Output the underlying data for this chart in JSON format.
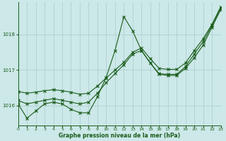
{
  "xlabel": "Graphe pression niveau de la mer (hPa)",
  "xlim": [
    0,
    23
  ],
  "ylim": [
    1015.45,
    1018.9
  ],
  "yticks": [
    1016,
    1017,
    1018
  ],
  "xticks": [
    0,
    1,
    2,
    3,
    4,
    5,
    6,
    7,
    8,
    9,
    10,
    11,
    12,
    13,
    14,
    15,
    16,
    17,
    18,
    19,
    20,
    21,
    22,
    23
  ],
  "bg_color": "#cce8e8",
  "line_color": "#1a5c1a",
  "grid_color": "#aacccc",
  "line1_y": [
    1016.05,
    1015.65,
    1015.85,
    1016.05,
    1016.1,
    1016.05,
    1015.9,
    1015.8,
    1015.8,
    1016.25,
    1016.8,
    1017.55,
    1018.5,
    1018.1,
    1017.55,
    1017.2,
    1016.88,
    1016.85,
    1016.85,
    1017.05,
    1017.35,
    1017.7,
    1018.2,
    1018.7
  ],
  "line2_y": [
    1016.15,
    1016.05,
    1016.1,
    1016.15,
    1016.2,
    1016.15,
    1016.1,
    1016.05,
    1016.1,
    1016.35,
    1016.65,
    1016.9,
    1017.15,
    1017.45,
    1017.55,
    1017.2,
    1016.9,
    1016.88,
    1016.88,
    1017.1,
    1017.45,
    1017.8,
    1018.25,
    1018.75
  ],
  "line3_y": [
    1016.4,
    1016.35,
    1016.38,
    1016.42,
    1016.45,
    1016.42,
    1016.38,
    1016.32,
    1016.35,
    1016.55,
    1016.78,
    1017.0,
    1017.22,
    1017.5,
    1017.62,
    1017.32,
    1017.05,
    1017.02,
    1017.02,
    1017.2,
    1017.55,
    1017.88,
    1018.28,
    1018.78
  ]
}
